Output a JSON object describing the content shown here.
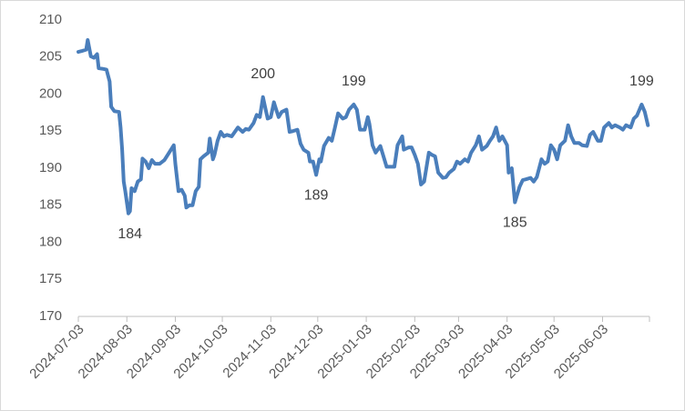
{
  "chart_data": {
    "type": "line",
    "color": "#4a7ebb",
    "grid": false,
    "x": [
      "2024-07-03",
      "2024-07-05",
      "2024-07-08",
      "2024-07-09",
      "2024-07-11",
      "2024-07-13",
      "2024-07-15",
      "2024-07-16",
      "2024-07-19",
      "2024-07-21",
      "2024-07-23",
      "2024-07-24",
      "2024-07-26",
      "2024-07-29",
      "2024-07-30",
      "2024-07-31",
      "2024-08-01",
      "2024-08-02",
      "2024-08-04",
      "2024-08-05",
      "2024-08-06",
      "2024-08-08",
      "2024-08-10",
      "2024-08-12",
      "2024-08-13",
      "2024-08-15",
      "2024-08-17",
      "2024-08-19",
      "2024-08-21",
      "2024-08-24",
      "2024-08-27",
      "2024-08-30",
      "2024-09-02",
      "2024-09-03",
      "2024-09-05",
      "2024-09-07",
      "2024-09-09",
      "2024-09-10",
      "2024-09-12",
      "2024-09-14",
      "2024-09-16",
      "2024-09-18",
      "2024-09-19",
      "2024-09-21",
      "2024-09-24",
      "2024-09-25",
      "2024-09-27",
      "2024-09-28",
      "2024-09-30",
      "2024-10-02",
      "2024-10-04",
      "2024-10-06",
      "2024-10-09",
      "2024-10-11",
      "2024-10-13",
      "2024-10-16",
      "2024-10-18",
      "2024-10-20",
      "2024-10-23",
      "2024-10-25",
      "2024-10-27",
      "2024-10-29",
      "2024-10-30",
      "2024-11-01",
      "2024-11-03",
      "2024-11-05",
      "2024-11-06",
      "2024-11-08",
      "2024-11-10",
      "2024-11-13",
      "2024-11-15",
      "2024-11-17",
      "2024-11-20",
      "2024-11-22",
      "2024-11-24",
      "2024-11-27",
      "2024-11-28",
      "2024-11-30",
      "2024-12-02",
      "2024-12-04",
      "2024-12-05",
      "2024-12-07",
      "2024-12-10",
      "2024-12-12",
      "2024-12-14",
      "2024-12-16",
      "2024-12-19",
      "2024-12-21",
      "2024-12-23",
      "2024-12-26",
      "2024-12-28",
      "2024-12-30",
      "2025-01-02",
      "2025-01-04",
      "2025-01-05",
      "2025-01-07",
      "2025-01-09",
      "2025-01-12",
      "2025-01-14",
      "2025-01-16",
      "2025-01-19",
      "2025-01-21",
      "2025-01-23",
      "2025-01-26",
      "2025-01-27",
      "2025-01-30",
      "2025-02-01",
      "2025-02-03",
      "2025-02-05",
      "2025-02-07",
      "2025-02-09",
      "2025-02-12",
      "2025-02-14",
      "2025-02-16",
      "2025-02-18",
      "2025-02-21",
      "2025-02-23",
      "2025-02-25",
      "2025-02-28",
      "2025-03-02",
      "2025-03-04",
      "2025-03-07",
      "2025-03-09",
      "2025-03-11",
      "2025-03-14",
      "2025-03-16",
      "2025-03-18",
      "2025-03-21",
      "2025-03-23",
      "2025-03-25",
      "2025-03-27",
      "2025-03-29",
      "2025-03-31",
      "2025-04-03",
      "2025-04-04",
      "2025-04-06",
      "2025-04-08",
      "2025-04-11",
      "2025-04-13",
      "2025-04-15",
      "2025-04-18",
      "2025-04-20",
      "2025-04-22",
      "2025-04-25",
      "2025-04-27",
      "2025-04-29",
      "2025-05-01",
      "2025-05-03",
      "2025-05-05",
      "2025-05-07",
      "2025-05-10",
      "2025-05-12",
      "2025-05-14",
      "2025-05-16",
      "2025-05-19",
      "2025-05-21",
      "2025-05-24",
      "2025-05-26",
      "2025-05-28",
      "2025-05-31",
      "2025-06-02",
      "2025-06-04",
      "2025-06-07",
      "2025-06-09",
      "2025-06-11",
      "2025-06-14",
      "2025-06-16",
      "2025-06-18",
      "2025-06-21",
      "2025-06-23",
      "2025-06-25",
      "2025-06-28",
      "2025-06-30",
      "2025-07-02"
    ],
    "values": [
      205.7,
      205.8,
      206,
      207.3,
      205.1,
      204.9,
      205.4,
      203.5,
      203.4,
      203.3,
      201.7,
      198.3,
      197.7,
      197.6,
      195.5,
      192.5,
      188.2,
      186.9,
      183.9,
      184.2,
      187.3,
      186.9,
      188.2,
      188.5,
      191.3,
      190.9,
      190,
      191.1,
      190.6,
      190.6,
      191.1,
      192.1,
      193.1,
      190.6,
      186.9,
      187.1,
      186.3,
      184.7,
      185,
      185,
      186.9,
      187.5,
      191.2,
      191.6,
      192.1,
      194,
      191.2,
      191.8,
      193.7,
      194.9,
      194.3,
      194.5,
      194.3,
      194.9,
      195.5,
      194.9,
      195.3,
      195.2,
      196.1,
      197.2,
      196.9,
      199.6,
      198.6,
      196.7,
      196.9,
      198.9,
      198.2,
      196.9,
      197.6,
      197.9,
      194.9,
      195,
      195.2,
      193.3,
      192.5,
      192.1,
      190.9,
      190.9,
      189.1,
      191.2,
      190.9,
      193,
      194.1,
      193.7,
      195.5,
      197.4,
      196.7,
      196.9,
      197.9,
      198.6,
      197.9,
      195.2,
      195.2,
      196.9,
      196,
      193.1,
      192.1,
      193,
      191.6,
      190.2,
      190.2,
      190.2,
      193.1,
      194.3,
      192.5,
      192.8,
      192.8,
      191.8,
      190.6,
      187.8,
      188.2,
      192.1,
      191.8,
      191.6,
      189.4,
      188.7,
      188.8,
      189.4,
      189.9,
      190.9,
      190.6,
      191.2,
      190.9,
      192.1,
      193.1,
      194.3,
      192.5,
      193,
      193.7,
      194.3,
      195.5,
      193.7,
      194.3,
      193.1,
      189.4,
      190,
      185.4,
      187.5,
      188.4,
      188.5,
      188.7,
      188.2,
      188.8,
      191.2,
      190.6,
      190.9,
      193.1,
      192.5,
      191.2,
      193.1,
      193.7,
      195.8,
      194.3,
      193.4,
      193.4,
      193.1,
      193,
      194.5,
      194.9,
      193.7,
      193.7,
      195.5,
      196.1,
      195.5,
      195.8,
      195.5,
      195.2,
      195.8,
      195.5,
      196.7,
      197.1,
      198.6,
      197.6,
      195.8
    ],
    "xlim": [
      "2024-07-03",
      "2025-07-03"
    ],
    "xticks": [
      "2024-07-03",
      "2024-08-03",
      "2024-09-03",
      "2024-10-03",
      "2024-11-03",
      "2024-12-03",
      "2025-01-03",
      "2025-02-03",
      "2025-03-03",
      "2025-04-03",
      "2025-05-03",
      "2025-06-03"
    ],
    "ylim": [
      170,
      210
    ],
    "yticks": [
      170,
      175,
      180,
      185,
      190,
      195,
      200,
      205,
      210
    ],
    "annotations": [
      {
        "x": "2024-08-05",
        "y": 183.9,
        "text": "184",
        "position": "below"
      },
      {
        "x": "2024-10-29",
        "y": 199.6,
        "text": "200",
        "position": "above"
      },
      {
        "x": "2024-12-02",
        "y": 189.1,
        "text": "189",
        "position": "below"
      },
      {
        "x": "2024-12-26",
        "y": 198.6,
        "text": "199",
        "position": "above"
      },
      {
        "x": "2025-04-08",
        "y": 185.4,
        "text": "185",
        "position": "below"
      },
      {
        "x": "2025-06-28",
        "y": 198.6,
        "text": "199",
        "position": "above"
      }
    ]
  }
}
